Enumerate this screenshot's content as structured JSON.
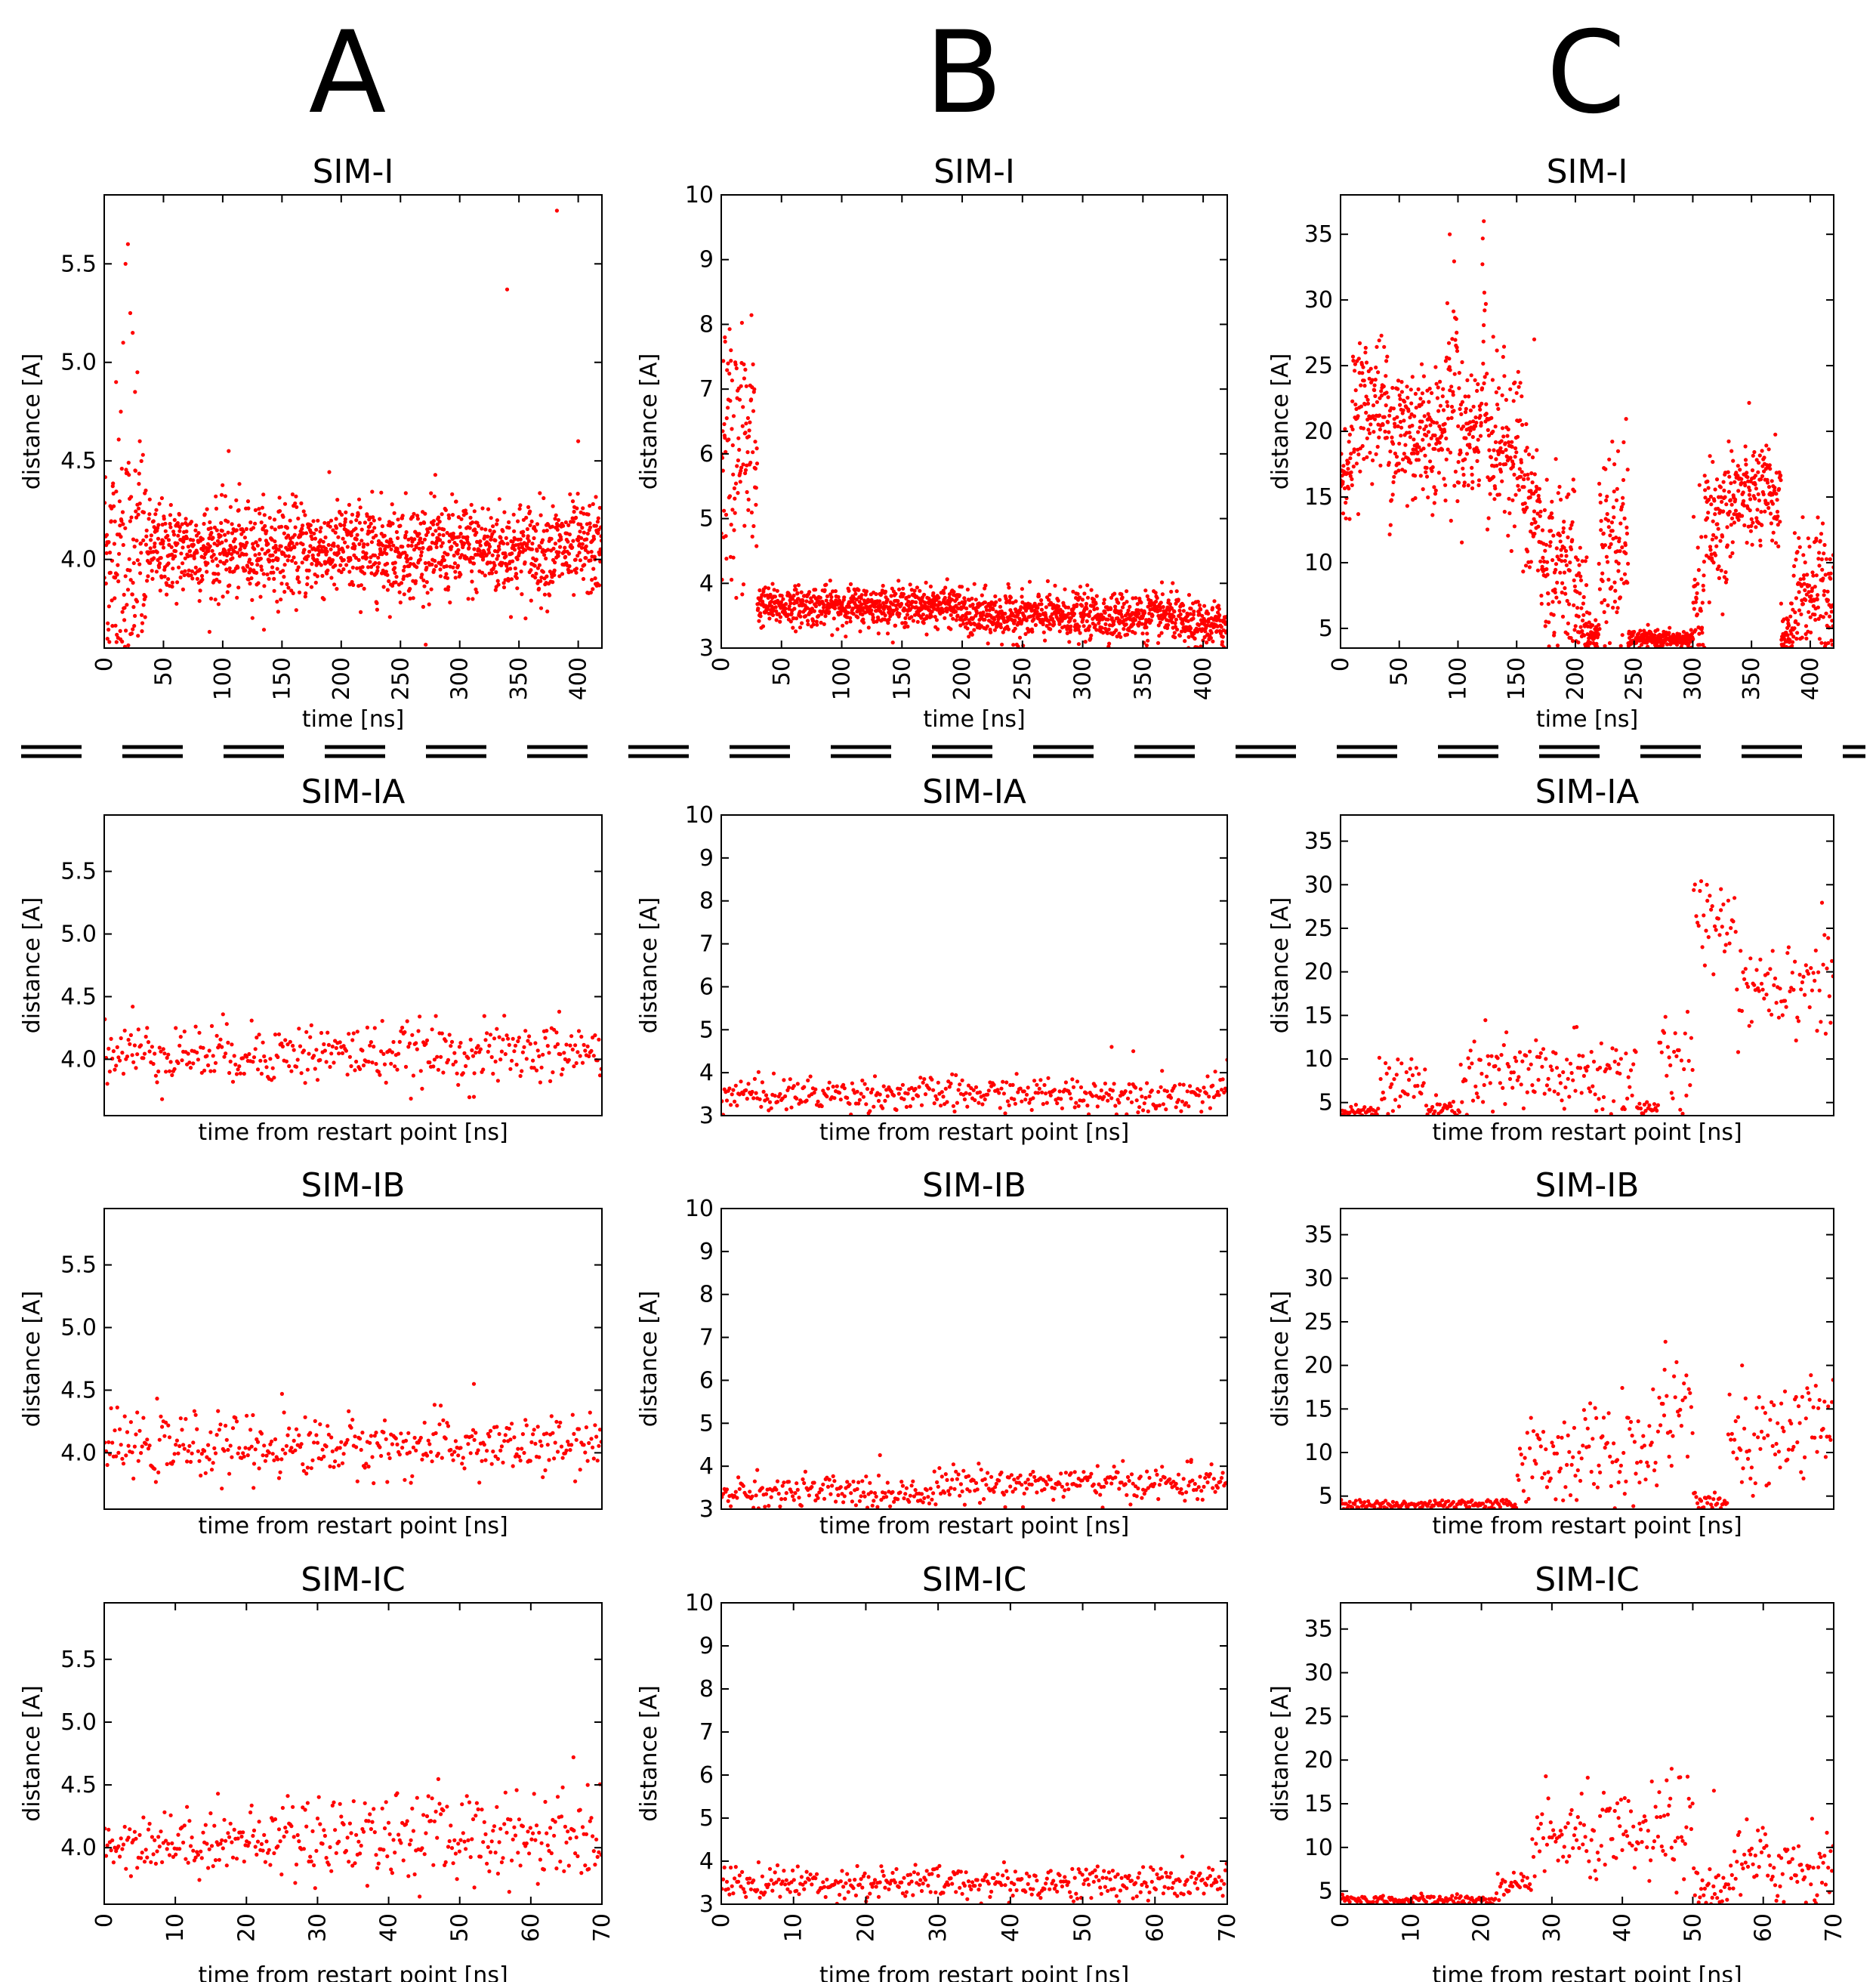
{
  "column_letters": [
    "A",
    "B",
    "C"
  ],
  "chart_data": [
    {
      "id": "A-SIM-I",
      "type": "scatter",
      "title": "SIM-I",
      "xlabel": "time [ns]",
      "ylabel": "distance [A]",
      "xlim": [
        0,
        420
      ],
      "ylim": [
        3.55,
        5.85
      ],
      "xticks": [
        0,
        50,
        100,
        150,
        200,
        250,
        300,
        350,
        400
      ],
      "yticks": [
        4.0,
        4.5,
        5.0,
        5.5
      ],
      "n_points": 1600,
      "series_color": "#ff0000",
      "segments": [
        [
          0,
          35,
          4.0,
          0.3
        ],
        [
          35,
          420,
          4.05,
          0.12
        ]
      ],
      "spikes": [
        [
          10,
          4.9
        ],
        [
          14,
          4.75
        ],
        [
          16,
          5.1
        ],
        [
          18,
          5.5
        ],
        [
          20,
          5.6
        ],
        [
          22,
          5.25
        ],
        [
          24,
          5.15
        ],
        [
          26,
          4.85
        ],
        [
          28,
          4.95
        ],
        [
          30,
          4.6
        ],
        [
          105,
          4.55
        ],
        [
          340,
          5.37
        ],
        [
          382,
          5.77
        ],
        [
          400,
          4.6
        ]
      ]
    },
    {
      "id": "B-SIM-I",
      "type": "scatter",
      "title": "SIM-I",
      "xlabel": "time [ns]",
      "ylabel": "distance [A]",
      "xlim": [
        0,
        420
      ],
      "ylim": [
        3,
        10
      ],
      "xticks": [
        0,
        50,
        100,
        150,
        200,
        250,
        300,
        350,
        400
      ],
      "yticks": [
        3,
        4,
        5,
        6,
        7,
        8,
        9,
        10
      ],
      "n_points": 1600,
      "series_color": "#ff0000",
      "segments": [
        [
          0,
          30,
          6.0,
          1.0
        ],
        [
          30,
          200,
          3.65,
          0.15
        ],
        [
          200,
          380,
          3.5,
          0.18
        ],
        [
          380,
          420,
          3.35,
          0.18
        ]
      ],
      "spikes": [
        [
          3,
          7.8
        ],
        [
          8,
          7.6
        ],
        [
          20,
          7.3
        ]
      ]
    },
    {
      "id": "C-SIM-I",
      "type": "scatter",
      "title": "SIM-I",
      "xlabel": "time [ns]",
      "ylabel": "distance [A]",
      "xlim": [
        0,
        420
      ],
      "ylim": [
        3.5,
        38
      ],
      "xticks": [
        0,
        50,
        100,
        150,
        200,
        250,
        300,
        350,
        400
      ],
      "yticks": [
        5,
        10,
        15,
        20,
        25,
        30,
        35
      ],
      "n_points": 1600,
      "series_color": "#ff0000",
      "segments": [
        [
          0,
          10,
          17,
          1.5
        ],
        [
          10,
          40,
          22,
          2.5
        ],
        [
          40,
          70,
          20,
          3
        ],
        [
          70,
          90,
          20,
          2.5
        ],
        [
          90,
          100,
          24,
          5
        ],
        [
          100,
          120,
          20,
          2.5
        ],
        [
          120,
          125,
          26,
          5
        ],
        [
          125,
          155,
          19,
          3
        ],
        [
          155,
          170,
          14,
          3
        ],
        [
          170,
          200,
          10,
          3
        ],
        [
          200,
          210,
          7,
          2.5
        ],
        [
          210,
          220,
          4.5,
          0.6
        ],
        [
          220,
          245,
          11,
          4
        ],
        [
          245,
          300,
          4.2,
          0.3
        ],
        [
          300,
          310,
          6,
          3
        ],
        [
          310,
          330,
          13,
          3
        ],
        [
          330,
          375,
          15,
          2
        ],
        [
          375,
          385,
          4.5,
          1
        ],
        [
          385,
          420,
          8,
          2.5
        ]
      ],
      "spikes": [
        [
          93,
          35
        ],
        [
          122,
          36
        ],
        [
          165,
          27
        ]
      ]
    },
    {
      "id": "A-SIM-IA",
      "type": "scatter",
      "title": "SIM-IA",
      "xlabel": "time from restart point  [ns]",
      "ylabel": "distance [A]",
      "xlim": [
        0,
        70
      ],
      "ylim": [
        3.55,
        5.95
      ],
      "xticks": [],
      "yticks": [
        4.0,
        4.5,
        5.0,
        5.5
      ],
      "n_points": 400,
      "series_color": "#ff0000",
      "segments": [
        [
          0,
          70,
          4.05,
          0.12
        ]
      ],
      "spikes": [
        [
          4,
          4.42
        ],
        [
          52,
          3.7
        ],
        [
          64,
          4.38
        ]
      ]
    },
    {
      "id": "B-SIM-IA",
      "type": "scatter",
      "title": "SIM-IA",
      "xlabel": "time from restart point  [ns]",
      "ylabel": "distance [A]",
      "xlim": [
        0,
        70
      ],
      "ylim": [
        3,
        10
      ],
      "xticks": [],
      "yticks": [
        3,
        4,
        5,
        6,
        7,
        8,
        9,
        10
      ],
      "n_points": 400,
      "series_color": "#ff0000",
      "segments": [
        [
          0,
          70,
          3.5,
          0.2
        ]
      ],
      "spikes": [
        [
          54,
          4.6
        ],
        [
          57,
          4.5
        ],
        [
          70,
          4.3
        ]
      ]
    },
    {
      "id": "C-SIM-IA",
      "type": "scatter",
      "title": "SIM-IA",
      "xlabel": "time from restart point  [ns]",
      "ylabel": "distance [A]",
      "xlim": [
        0,
        70
      ],
      "ylim": [
        3.5,
        38
      ],
      "xticks": [],
      "yticks": [
        5,
        10,
        15,
        20,
        25,
        30,
        35
      ],
      "n_points": 400,
      "series_color": "#ff0000",
      "segments": [
        [
          0,
          5,
          4.0,
          0.3
        ],
        [
          5,
          12,
          7,
          2
        ],
        [
          12,
          17,
          4.2,
          0.5
        ],
        [
          17,
          42,
          8,
          2.5
        ],
        [
          42,
          45,
          4.5,
          0.5
        ],
        [
          45,
          50,
          9,
          3
        ],
        [
          50,
          56,
          26,
          2.5
        ],
        [
          56,
          70,
          19,
          3
        ]
      ],
      "spikes": [
        [
          52,
          30
        ],
        [
          54,
          29.5
        ]
      ]
    },
    {
      "id": "A-SIM-IB",
      "type": "scatter",
      "title": "SIM-IB",
      "xlabel": "time from restart point  [ns]",
      "ylabel": "distance [A]",
      "xlim": [
        0,
        70
      ],
      "ylim": [
        3.55,
        5.95
      ],
      "xticks": [],
      "yticks": [
        4.0,
        4.5,
        5.0,
        5.5
      ],
      "n_points": 400,
      "series_color": "#ff0000",
      "segments": [
        [
          0,
          70,
          4.05,
          0.12
        ]
      ],
      "spikes": [
        [
          25,
          4.47
        ],
        [
          52,
          4.55
        ],
        [
          21,
          3.72
        ]
      ]
    },
    {
      "id": "B-SIM-IB",
      "type": "scatter",
      "title": "SIM-IB",
      "xlabel": "time from restart point  [ns]",
      "ylabel": "distance [A]",
      "xlim": [
        0,
        70
      ],
      "ylim": [
        3,
        10
      ],
      "xticks": [],
      "yticks": [
        3,
        4,
        5,
        6,
        7,
        8,
        9,
        10
      ],
      "n_points": 400,
      "series_color": "#ff0000",
      "segments": [
        [
          0,
          30,
          3.4,
          0.2
        ],
        [
          30,
          70,
          3.6,
          0.2
        ]
      ],
      "spikes": [
        [
          65,
          4.1
        ]
      ]
    },
    {
      "id": "C-SIM-IB",
      "type": "scatter",
      "title": "SIM-IB",
      "xlabel": "time from restart point  [ns]",
      "ylabel": "distance [A]",
      "xlim": [
        0,
        70
      ],
      "ylim": [
        3.5,
        38
      ],
      "xticks": [],
      "yticks": [
        5,
        10,
        15,
        20,
        25,
        30,
        35
      ],
      "n_points": 400,
      "series_color": "#ff0000",
      "segments": [
        [
          0,
          25,
          4.0,
          0.3
        ],
        [
          25,
          30,
          9,
          2.5
        ],
        [
          30,
          45,
          10,
          3
        ],
        [
          45,
          50,
          15,
          3
        ],
        [
          50,
          55,
          4.3,
          0.5
        ],
        [
          55,
          60,
          10,
          3
        ],
        [
          60,
          70,
          13,
          3
        ]
      ],
      "spikes": [
        [
          46,
          19.5
        ],
        [
          57,
          20
        ]
      ]
    },
    {
      "id": "A-SIM-IC",
      "type": "scatter",
      "title": "SIM-IC",
      "xlabel": "time from restart point  [ns]",
      "ylabel": "distance [A]",
      "xlim": [
        0,
        70
      ],
      "ylim": [
        3.55,
        5.95
      ],
      "xticks": [
        0,
        10,
        20,
        30,
        40,
        50,
        60,
        70
      ],
      "yticks": [
        4.0,
        4.5,
        5.0,
        5.5
      ],
      "n_points": 400,
      "series_color": "#ff0000",
      "segments": [
        [
          0,
          25,
          4.05,
          0.12
        ],
        [
          25,
          70,
          4.1,
          0.18
        ]
      ],
      "spikes": [
        [
          16,
          4.43
        ],
        [
          66,
          4.72
        ],
        [
          68,
          4.5
        ]
      ]
    },
    {
      "id": "B-SIM-IC",
      "type": "scatter",
      "title": "SIM-IC",
      "xlabel": "time from restart point  [ns]",
      "ylabel": "distance [A]",
      "xlim": [
        0,
        70
      ],
      "ylim": [
        3,
        10
      ],
      "xticks": [
        0,
        10,
        20,
        30,
        40,
        50,
        60,
        70
      ],
      "yticks": [
        3,
        4,
        5,
        6,
        7,
        8,
        9,
        10
      ],
      "n_points": 400,
      "series_color": "#ff0000",
      "segments": [
        [
          0,
          70,
          3.5,
          0.2
        ]
      ],
      "spikes": []
    },
    {
      "id": "C-SIM-IC",
      "type": "scatter",
      "title": "SIM-IC",
      "xlabel": "time from restart point  [ns]",
      "ylabel": "distance [A]",
      "xlim": [
        0,
        70
      ],
      "ylim": [
        3.5,
        38
      ],
      "xticks": [
        0,
        10,
        20,
        30,
        40,
        50,
        60,
        70
      ],
      "yticks": [
        5,
        10,
        15,
        20,
        25,
        30,
        35
      ],
      "n_points": 400,
      "series_color": "#ff0000",
      "segments": [
        [
          0,
          22,
          4.0,
          0.3
        ],
        [
          22,
          27,
          5,
          1
        ],
        [
          27,
          45,
          11,
          2.5
        ],
        [
          45,
          50,
          12,
          3
        ],
        [
          50,
          55,
          5,
          1.5
        ],
        [
          55,
          70,
          8,
          2.5
        ]
      ],
      "spikes": [
        [
          47,
          19
        ],
        [
          53,
          16.5
        ]
      ]
    }
  ]
}
